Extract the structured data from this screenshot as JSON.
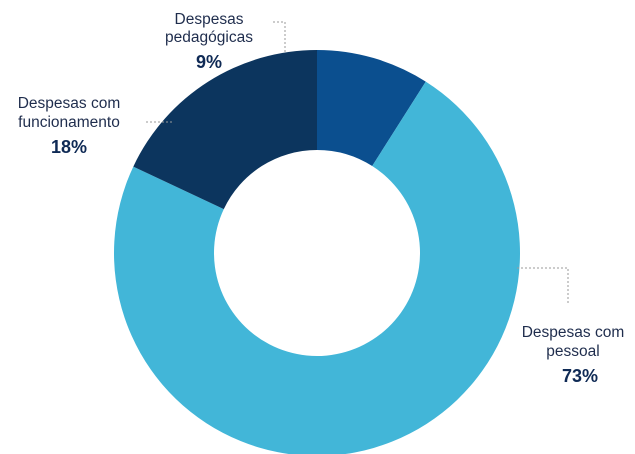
{
  "chart_data": {
    "type": "pie",
    "donut": true,
    "title": "",
    "legend": "none",
    "data_labels": "outside with leader lines",
    "slices": [
      {
        "label": [
          "Despesas",
          "pedagógicas"
        ],
        "value": 9,
        "display": "9%",
        "color": "#0b4f8f"
      },
      {
        "label": [
          "Despesas com",
          "pessoal"
        ],
        "value": 73,
        "display": "73%",
        "color": "#42b6d8"
      },
      {
        "label": [
          "Despesas com",
          "funcionamento"
        ],
        "value": 18,
        "display": "18%",
        "color": "#0c355e"
      }
    ]
  }
}
